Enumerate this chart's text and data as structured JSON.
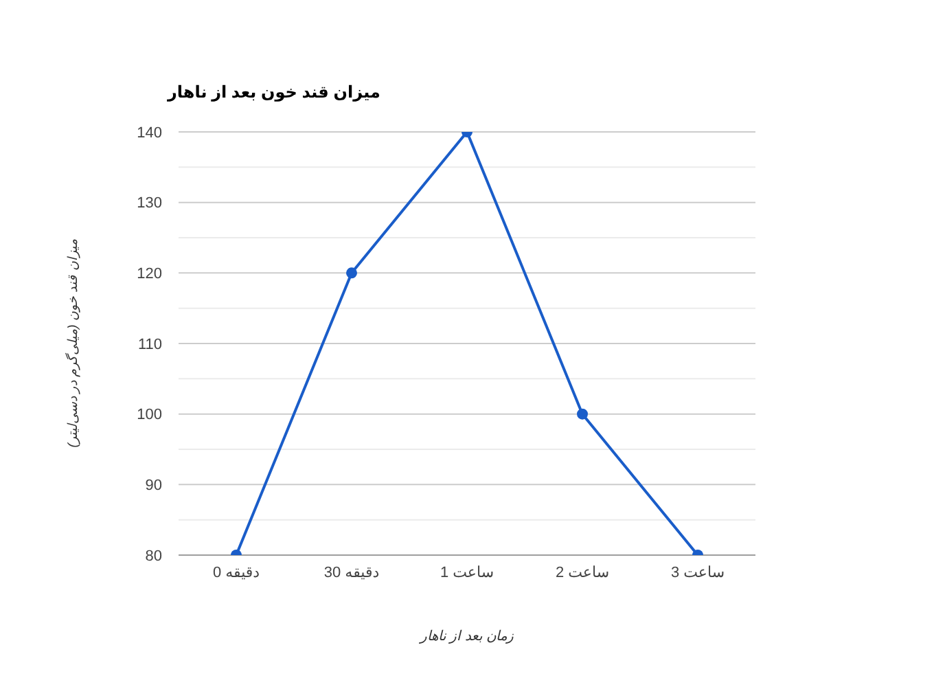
{
  "chart_data": {
    "type": "line",
    "title": "میزان قند خون بعد از ناهار",
    "xlabel": "زمان بعد از ناهار",
    "ylabel": "میزان قند خون (میلی‌گرم در دسی‌لیتر)",
    "categories": [
      "دقیقه 0",
      "دقیقه 30",
      "ساعت 1",
      "ساعت 2",
      "ساعت 3"
    ],
    "series": [
      {
        "color": "#1a5dc9",
        "values": [
          80,
          120,
          140,
          100,
          80
        ]
      }
    ],
    "ylim": [
      80,
      140
    ],
    "yticks": [
      80,
      {
        "value": 85,
        "label": null
      },
      90,
      {
        "value": 95,
        "label": null
      },
      100,
      {
        "value": 105,
        "label": null
      },
      110,
      {
        "value": 115,
        "label": null
      },
      120,
      {
        "value": 125,
        "label": null
      },
      130,
      {
        "value": 135,
        "label": null
      },
      140
    ],
    "grid": "y",
    "marker": "circle",
    "line_style": "solid"
  }
}
